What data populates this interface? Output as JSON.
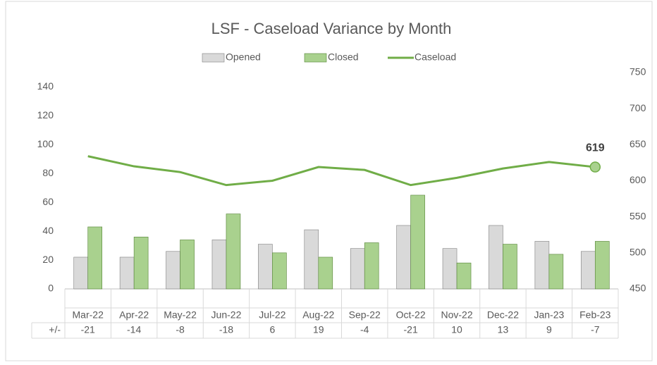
{
  "chart_data": {
    "type": "bar",
    "title": "LSF - Caseload Variance by Month",
    "categories": [
      "Mar-22",
      "Apr-22",
      "May-22",
      "Jun-22",
      "Jul-22",
      "Aug-22",
      "Sep-22",
      "Oct-22",
      "Nov-22",
      "Dec-22",
      "Jan-23",
      "Feb-23"
    ],
    "series": [
      {
        "name": "Opened",
        "color": "#d9d9d9",
        "values": [
          22,
          22,
          26,
          34,
          31,
          41,
          28,
          44,
          28,
          44,
          33,
          26
        ]
      },
      {
        "name": "Closed",
        "color": "#a9d18e",
        "values": [
          43,
          36,
          34,
          52,
          25,
          22,
          32,
          65,
          18,
          31,
          24,
          33
        ]
      },
      {
        "name": "Caseload",
        "type": "line",
        "axis": "y2",
        "color": "#70ad47",
        "values": [
          634,
          620,
          612,
          594,
          600,
          619,
          615,
          594,
          604,
          617,
          626,
          619
        ]
      }
    ],
    "ylim": [
      0,
      150
    ],
    "yticks": [
      0,
      20,
      40,
      60,
      80,
      100,
      120,
      140
    ],
    "y2lim": [
      450,
      750
    ],
    "y2ticks": [
      450,
      500,
      550,
      600,
      650,
      700,
      750
    ],
    "grid": false,
    "legend": "top",
    "table": {
      "row_label": "+/-",
      "values": [
        -21,
        -14,
        -8,
        -18,
        6,
        19,
        -4,
        -21,
        10,
        13,
        9,
        -7
      ]
    }
  }
}
